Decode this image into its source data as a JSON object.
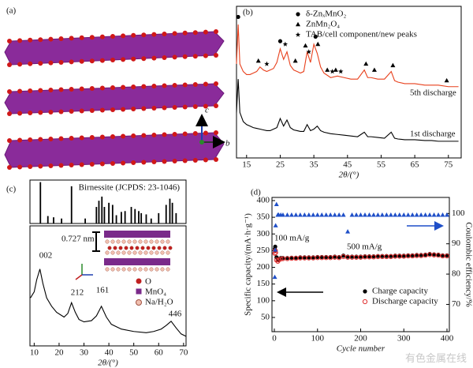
{
  "panel_a": {
    "label": "(a)",
    "axis_labels": [
      "c",
      "b"
    ]
  },
  "watermark": "有色金属在线",
  "chart_data": [
    {
      "type": "line",
      "label": "(b)",
      "xlabel": "2θ/(°)",
      "xlim": [
        12,
        78.8
      ],
      "xticks": [
        15,
        25,
        35,
        45,
        55,
        65,
        75
      ],
      "ylim": [
        0,
        100
      ],
      "series": [
        {
          "name": "1st discharge",
          "color": "#000000",
          "x": [
            12,
            12.5,
            13,
            14,
            15,
            16,
            17,
            18,
            19,
            20,
            21,
            22,
            23,
            24,
            25,
            26,
            27,
            28,
            29,
            30,
            31,
            32,
            33,
            34,
            35,
            36,
            37,
            38,
            40,
            42,
            44,
            46,
            48,
            50,
            51,
            52,
            54,
            56,
            58,
            59,
            60,
            62,
            65,
            68,
            70,
            72,
            75,
            78
          ],
          "values": [
            30,
            52,
            30,
            24,
            22,
            21,
            20,
            19.5,
            19,
            18.5,
            18,
            18,
            19,
            20,
            26,
            21,
            25,
            20,
            18.5,
            18,
            17.5,
            17.5,
            22,
            18,
            19,
            21,
            18,
            17,
            16,
            15.5,
            15,
            14.5,
            14,
            17,
            14,
            14,
            13.5,
            13,
            17,
            13,
            12.5,
            12,
            12,
            11.5,
            11.5,
            11,
            11,
            11
          ]
        },
        {
          "name": "5th discharge",
          "color": "#e8401c",
          "x": [
            12,
            12.5,
            13,
            14,
            15,
            16,
            17,
            18,
            19,
            20,
            21,
            22,
            23,
            24,
            25,
            26,
            27,
            28,
            29,
            30,
            31,
            32,
            33,
            34,
            35,
            36,
            37,
            38,
            40,
            42,
            44,
            46,
            48,
            50,
            51,
            52,
            54,
            56,
            58,
            59,
            60,
            62,
            65,
            68,
            70,
            72,
            75,
            78
          ],
          "values": [
            62,
            88,
            62,
            57,
            55,
            55,
            56,
            57,
            60,
            58,
            57,
            58,
            59,
            63,
            72,
            65,
            70,
            61,
            58,
            57,
            56,
            57,
            70,
            63,
            75,
            69,
            60,
            56,
            53,
            54,
            53,
            52,
            52,
            58,
            53,
            53,
            52,
            52,
            57,
            51,
            50,
            49,
            49,
            48,
            48,
            48,
            47,
            47
          ]
        }
      ],
      "markers": [
        {
          "name": "δ-ZnₓMnO₂",
          "symbol": "circle",
          "color": "#000000",
          "x": [
            12.5,
            25,
            35.5
          ],
          "y": [
            93,
            77,
            80
          ]
        },
        {
          "name": "ZnMn₂O₄",
          "symbol": "triangle",
          "color": "#000000",
          "x": [
            18.5,
            29.5,
            32.5,
            36.2,
            39,
            41.5,
            50.5,
            53,
            58.5,
            74.5
          ],
          "y": [
            64,
            64,
            74,
            75,
            58,
            58,
            62,
            58,
            61,
            51
          ]
        },
        {
          "name": "TAB/cell component/new peaks",
          "symbol": "star",
          "color": "#000000",
          "x": [
            21,
            26.5,
            33.5,
            40.5,
            43
          ],
          "y": [
            62,
            75,
            70,
            57,
            57
          ]
        }
      ]
    },
    {
      "type": "bar",
      "title": "Birnessite (JCPDS: 23-1046)",
      "color": "#000000",
      "xlim": [
        8.3,
        71
      ],
      "ylim": [
        0,
        105
      ],
      "x": [
        12.5,
        15.5,
        17.8,
        21,
        25,
        30.5,
        35,
        36,
        37.2,
        38.2,
        40,
        41.5,
        43,
        45,
        46.5,
        49,
        50.5,
        52,
        53,
        55,
        57,
        60,
        63,
        64.5,
        65.5,
        67
      ],
      "values": [
        100,
        18,
        15,
        12,
        90,
        12,
        40,
        55,
        65,
        40,
        50,
        45,
        20,
        28,
        30,
        40,
        35,
        30,
        25,
        22,
        12,
        25,
        45,
        60,
        50,
        25
      ]
    },
    {
      "type": "line",
      "label": "(c)",
      "xlabel": "2θ/(°)",
      "xlim": [
        8.3,
        71
      ],
      "xticks": [
        10,
        20,
        30,
        40,
        50,
        60,
        70
      ],
      "ylim": [
        0,
        100
      ],
      "series": [
        {
          "color": "#000000",
          "x": [
            8.5,
            10,
            11,
            12.3,
            13.5,
            15,
            17,
            19,
            22,
            23.5,
            25,
            26.5,
            28,
            30,
            33,
            35,
            37,
            39,
            41,
            45,
            50,
            55,
            58,
            61,
            63,
            65,
            67,
            69,
            71
          ],
          "values": [
            40,
            45,
            55,
            64,
            52,
            40,
            33,
            28,
            24,
            27,
            36,
            28,
            22,
            20,
            21,
            25,
            33,
            24,
            18,
            14,
            12,
            11,
            12,
            14,
            17,
            20.5,
            15,
            10,
            8
          ]
        }
      ],
      "peak_labels": [
        "002",
        "212",
        "161",
        "446"
      ],
      "spacing_label": "0.727 nm",
      "inset_legend": [
        "O",
        "MnO₄",
        "Na/H₂O"
      ]
    },
    {
      "type": "scatter",
      "label": "(d)",
      "xlabel": "Cycle number",
      "ylabel": "Specific capacity/(mA·h·g⁻¹)",
      "y2label": "Coulombic efficiency/%",
      "xlim": [
        -5.5,
        405.5
      ],
      "xticks": [
        0,
        100,
        200,
        300,
        400
      ],
      "ylim": [
        7.4,
        409.4
      ],
      "yticks": [
        50,
        100,
        150,
        200,
        250,
        300,
        350,
        400
      ],
      "y2lim": [
        61,
        105.3
      ],
      "y2ticks": [
        70,
        80,
        90,
        100
      ],
      "annotations": [
        "100 mA/g",
        "500 mA/g"
      ],
      "series": [
        {
          "name": "Charge capacity",
          "color": "#000000",
          "marker": "circle-filled",
          "x": [
            1,
            2,
            3,
            5,
            8,
            10,
            15,
            20,
            30,
            40,
            50,
            60,
            70,
            80,
            90,
            100,
            110,
            120,
            130,
            140,
            150,
            160,
            170,
            180,
            190,
            200,
            210,
            220,
            230,
            240,
            250,
            260,
            270,
            280,
            290,
            300,
            310,
            320,
            330,
            340,
            350,
            360,
            370,
            380,
            390,
            400
          ],
          "values": [
            255,
            262,
            250,
            230,
            222,
            225,
            228,
            228,
            228,
            229,
            229,
            230,
            230,
            230,
            230,
            231,
            231,
            231,
            231,
            232,
            231,
            235,
            232,
            232,
            232,
            232,
            233,
            233,
            233,
            234,
            234,
            234,
            234,
            235,
            235,
            235,
            236,
            236,
            237,
            237,
            238,
            240,
            239,
            238,
            236,
            236
          ]
        },
        {
          "name": "Discharge capacity",
          "color": "#e03030",
          "marker": "circle-open",
          "x": [
            1,
            2,
            3,
            5,
            8,
            10,
            15,
            20,
            30,
            40,
            50,
            60,
            70,
            80,
            90,
            100,
            110,
            120,
            130,
            140,
            150,
            160,
            170,
            180,
            190,
            200,
            210,
            220,
            230,
            240,
            250,
            260,
            270,
            280,
            290,
            300,
            310,
            320,
            330,
            340,
            350,
            360,
            370,
            380,
            390,
            400
          ],
          "values": [
            242,
            250,
            244,
            222,
            218,
            222,
            225,
            226,
            226,
            227,
            227,
            228,
            228,
            228,
            228,
            229,
            229,
            229,
            229,
            230,
            229,
            232,
            230,
            230,
            230,
            230,
            231,
            231,
            231,
            232,
            232,
            232,
            232,
            233,
            233,
            233,
            234,
            234,
            235,
            235,
            236,
            238,
            237,
            236,
            234,
            234
          ]
        },
        {
          "color": "#1f4fc8",
          "marker": "triangle",
          "axis": "y2",
          "x": [
            1,
            2,
            3,
            5,
            8,
            10,
            15,
            20,
            30,
            40,
            50,
            60,
            70,
            80,
            90,
            100,
            110,
            120,
            130,
            140,
            150,
            160,
            170,
            180,
            190,
            200,
            210,
            220,
            230,
            240,
            250,
            260,
            270,
            280,
            290,
            300,
            310,
            320,
            330,
            340,
            350,
            360,
            370,
            380,
            390,
            400
          ],
          "values": [
            79,
            88,
            96,
            103,
            99.5,
            99.5,
            99.5,
            99.5,
            99.5,
            99.5,
            99.5,
            99.5,
            99.5,
            99.5,
            99.5,
            99.5,
            99.5,
            99.5,
            99.5,
            99.5,
            99.5,
            99.5,
            94,
            99.5,
            99.5,
            99.5,
            99.5,
            99.5,
            99.5,
            99.5,
            99.5,
            99.5,
            99.5,
            99.5,
            99.5,
            99.5,
            99.5,
            99.5,
            99.5,
            99.5,
            99.5,
            99.5,
            99.5,
            99.5,
            99.5,
            99.5
          ]
        }
      ]
    }
  ]
}
